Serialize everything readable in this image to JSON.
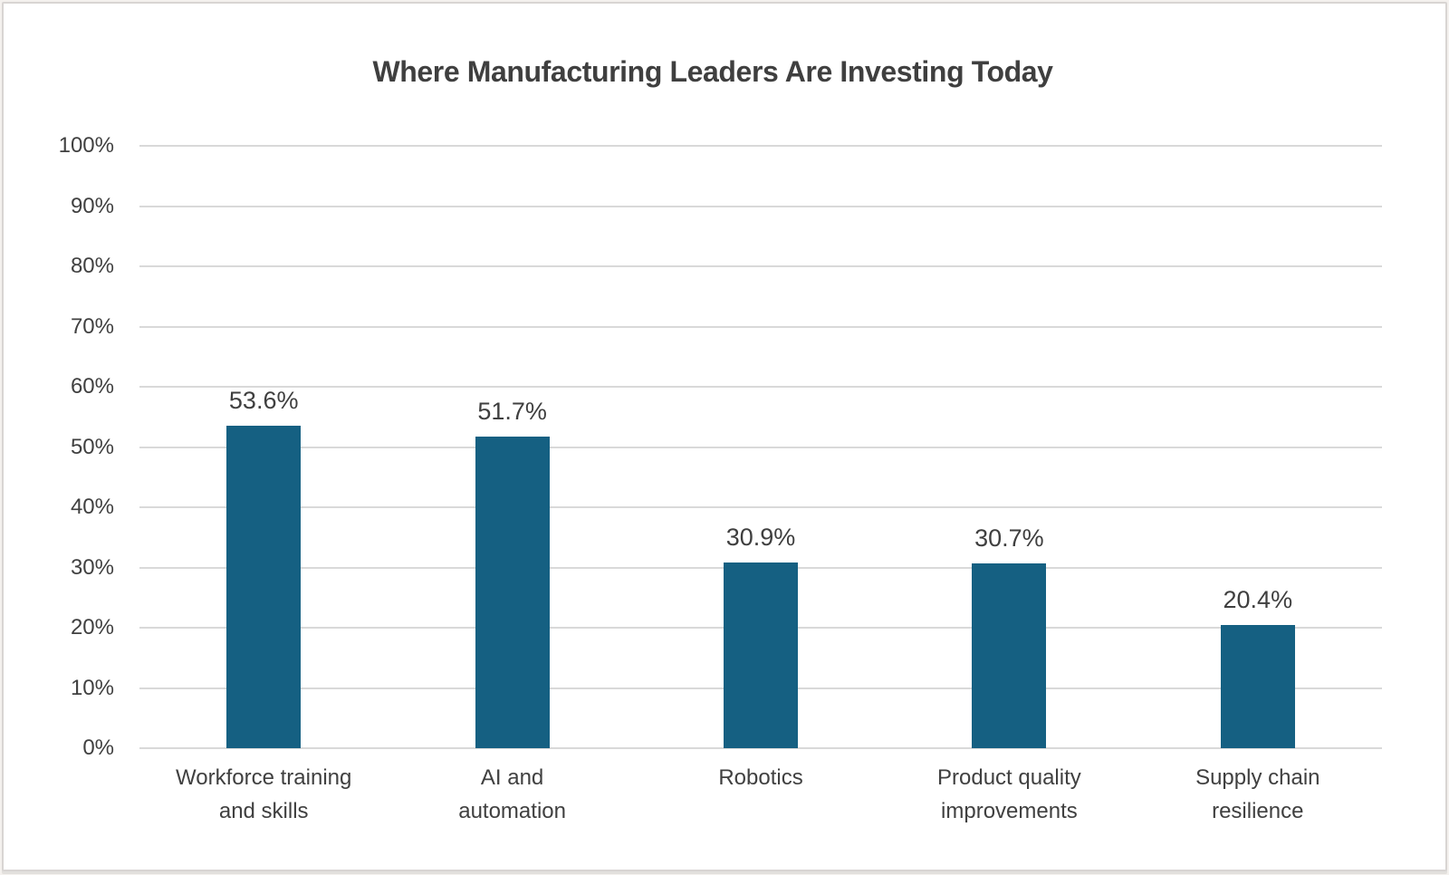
{
  "chart_data": {
    "type": "bar",
    "title": "Where Manufacturing Leaders Are Investing Today",
    "categories": [
      "Workforce training and skills",
      "AI and automation",
      "Robotics",
      "Product quality improvements",
      "Supply chain resilience"
    ],
    "category_lines": [
      [
        "Workforce training",
        "and skills"
      ],
      [
        "AI and",
        "automation"
      ],
      [
        "Robotics"
      ],
      [
        "Product quality",
        "improvements"
      ],
      [
        "Supply chain",
        "resilience"
      ]
    ],
    "values": [
      53.6,
      51.7,
      30.9,
      30.7,
      20.4
    ],
    "data_labels": [
      "53.6%",
      "51.7%",
      "30.9%",
      "30.7%",
      "20.4%"
    ],
    "xlabel": "",
    "ylabel": "",
    "ylim": [
      0,
      100
    ],
    "ytick_step": 10,
    "ytick_labels": [
      "0%",
      "10%",
      "20%",
      "30%",
      "40%",
      "50%",
      "60%",
      "70%",
      "80%",
      "90%",
      "100%"
    ],
    "grid": true,
    "legend": "none",
    "colors": {
      "bar": "#156082",
      "text": "#404040",
      "title_text": "#3f3f3f",
      "gridline": "#d9d9d9",
      "background": "#ffffff",
      "frame_border": "#d8d5d3"
    }
  }
}
